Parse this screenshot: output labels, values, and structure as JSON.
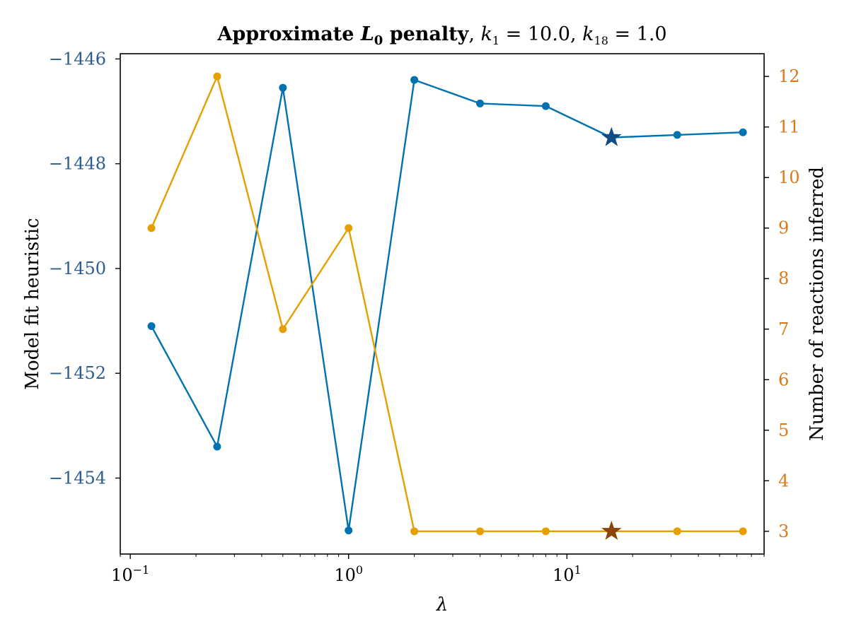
{
  "chart_data": {
    "type": "line",
    "title": "Approximate L0 penalty, k1 = 10.0, k18 = 1.0",
    "title_parts": {
      "bold_text": "Approximate ",
      "bold_symbol": "L",
      "bold_subscript": "0",
      "bold_suffix": " penalty",
      "sep": ", ",
      "k1_symbol": "k",
      "k1_subscript": "1",
      "k1_value": " = 10.0",
      "k2_symbol": "k",
      "k2_subscript": "18",
      "k2_value": " = 1.0"
    },
    "xlabel": "λ",
    "x_scale": "log",
    "xlim": [
      0.09,
      80
    ],
    "x_ticks": [
      {
        "value": 0.1,
        "base": "10",
        "exp": "−1"
      },
      {
        "value": 1,
        "base": "10",
        "exp": "0"
      },
      {
        "value": 10,
        "base": "10",
        "exp": "1"
      }
    ],
    "x": [
      0.125,
      0.25,
      0.5,
      1,
      2,
      4,
      8,
      16,
      32,
      64
    ],
    "left_axis": {
      "label": "Model fit heuristic",
      "ylim": [
        -1455.45,
        -1445.9
      ],
      "ticks": [
        -1446,
        -1448,
        -1450,
        -1452,
        -1454
      ],
      "tick_labels": [
        "−1446",
        "−1448",
        "−1450",
        "−1452",
        "−1454"
      ],
      "tick_color": "#2c5d8c"
    },
    "right_axis": {
      "label": "Number of reactions inferred",
      "ylim": [
        2.55,
        12.45
      ],
      "ticks": [
        3,
        4,
        5,
        6,
        7,
        8,
        9,
        10,
        11,
        12
      ],
      "tick_labels": [
        "3",
        "4",
        "5",
        "6",
        "7",
        "8",
        "9",
        "10",
        "11",
        "12"
      ],
      "tick_color": "#d97a1a"
    },
    "series": [
      {
        "axis": "left",
        "color": "#0072b2",
        "values": [
          -1451.1,
          -1453.4,
          -1446.55,
          -1455.0,
          -1446.4,
          -1446.85,
          -1446.9,
          -1447.5,
          -1447.45,
          -1447.4
        ],
        "highlight_index": 7,
        "highlight_color": "#134b86"
      },
      {
        "axis": "right",
        "color": "#e69f00",
        "values": [
          9,
          12,
          7,
          9,
          3,
          3,
          3,
          3,
          3,
          3
        ],
        "highlight_index": 7,
        "highlight_color": "#8b4500"
      }
    ],
    "grid": false,
    "legend": "none"
  }
}
